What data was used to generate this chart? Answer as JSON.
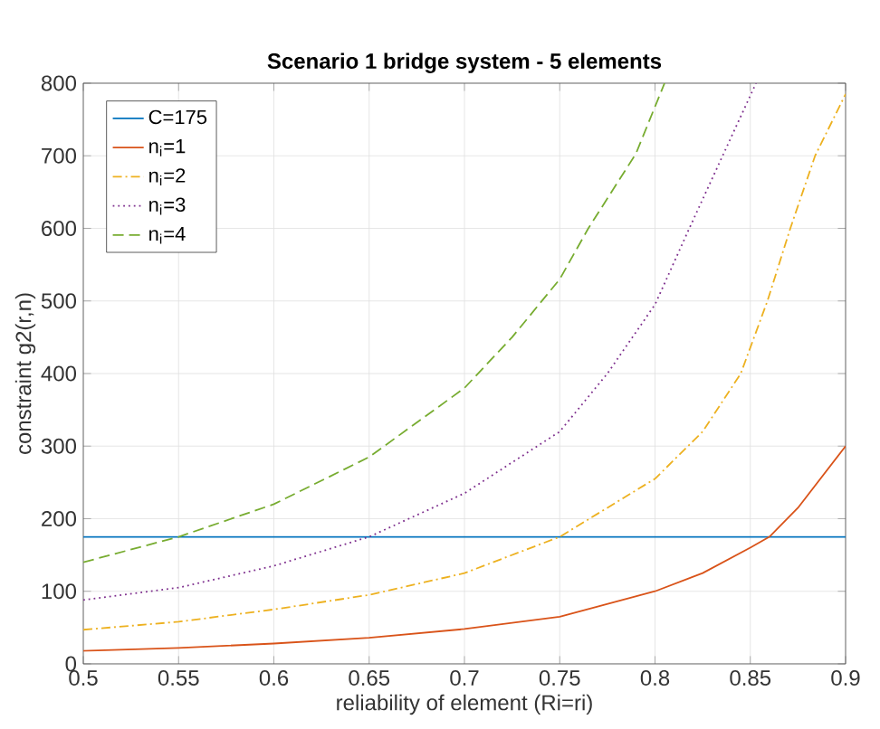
{
  "chart_data": {
    "type": "line",
    "title": "Scenario 1 bridge system - 5 elements",
    "xlabel": "reliability of element (Ri=ri)",
    "ylabel": "constraint g2(r,n)",
    "xlim": [
      0.5,
      0.9
    ],
    "ylim": [
      0,
      800
    ],
    "xticks": [
      0.5,
      0.55,
      0.6,
      0.65,
      0.7,
      0.75,
      0.8,
      0.85,
      0.9
    ],
    "yticks": [
      0,
      100,
      200,
      300,
      400,
      500,
      600,
      700,
      800
    ],
    "grid": true,
    "legend": "top left",
    "marker": "none",
    "series": [
      {
        "name": "C=175",
        "color": "#0072bd",
        "line_style": "solid",
        "x": [
          0.5,
          0.9
        ],
        "values": [
          175,
          175
        ]
      },
      {
        "name": "n$_{i}$=1",
        "color": "#d95319",
        "line_style": "solid",
        "x": [
          0.5,
          0.55,
          0.6,
          0.65,
          0.7,
          0.75,
          0.8,
          0.825,
          0.85,
          0.86,
          0.875,
          0.9
        ],
        "values": [
          18,
          22,
          28,
          36,
          48,
          65,
          100,
          125,
          160,
          175,
          215,
          300
        ]
      },
      {
        "name": "n$_{i}$=2",
        "color": "#edb120",
        "line_style": "dashdot",
        "x": [
          0.5,
          0.55,
          0.6,
          0.65,
          0.7,
          0.75,
          0.8,
          0.825,
          0.845,
          0.859,
          0.871,
          0.884,
          0.9
        ],
        "values": [
          47,
          58,
          75,
          95,
          125,
          175,
          255,
          320,
          400,
          500,
          600,
          700,
          785
        ]
      },
      {
        "name": "n$_{i}$=3",
        "color": "#7e2f8e",
        "line_style": "dotted",
        "x": [
          0.5,
          0.55,
          0.6,
          0.65,
          0.7,
          0.75,
          0.775,
          0.8,
          0.818,
          0.836,
          0.853
        ],
        "values": [
          88,
          105,
          135,
          175,
          235,
          320,
          400,
          495,
          600,
          703,
          800
        ]
      },
      {
        "name": "n$_{i}$=4",
        "color": "#77ac30",
        "line_style": "dashed",
        "x": [
          0.5,
          0.55,
          0.6,
          0.65,
          0.7,
          0.725,
          0.75,
          0.765,
          0.79,
          0.805
        ],
        "values": [
          140,
          175,
          220,
          285,
          380,
          450,
          530,
          600,
          703,
          800
        ]
      }
    ]
  }
}
